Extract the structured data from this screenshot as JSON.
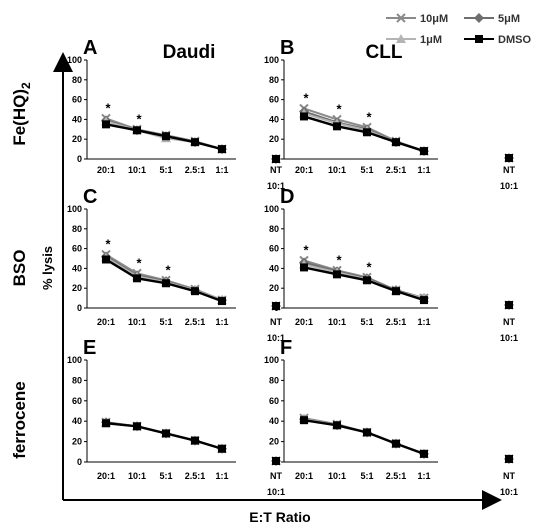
{
  "figure": {
    "y_axis_label": "% lysis",
    "x_axis_label": "E:T Ratio",
    "column_titles": [
      "Daudi",
      "CLL"
    ],
    "row_labels": [
      "Fe(HQ)",
      "BSO",
      "ferrocene"
    ],
    "row_label_subscript": "2",
    "nt_label": [
      "NT",
      "10:1"
    ],
    "significance_marker": "*"
  },
  "legend": [
    {
      "name": "10μM",
      "color": "#8a8a8a",
      "marker": "x"
    },
    {
      "name": "5μM",
      "color": "#6e6e6e",
      "marker": "diamond"
    },
    {
      "name": "1μM",
      "color": "#b4b4b4",
      "marker": "triangle"
    },
    {
      "name": "DMSO",
      "color": "#000000",
      "marker": "square"
    }
  ],
  "chart_data": [
    {
      "type": "line",
      "panel": "A",
      "categories": [
        "20:1",
        "10:1",
        "5:1",
        "2.5:1",
        "1:1"
      ],
      "nt_category": "NT 10:1",
      "ylim": [
        0,
        100
      ],
      "yticks": [
        0,
        20,
        40,
        60,
        80,
        100
      ],
      "series": [
        {
          "name": "10μM",
          "values": [
            41,
            30,
            24,
            18,
            10
          ],
          "nt": 0
        },
        {
          "name": "5μM",
          "values": [
            39,
            29,
            23,
            17,
            10
          ],
          "nt": 0
        },
        {
          "name": "1μM",
          "values": [
            38,
            29,
            21,
            17,
            10
          ],
          "nt": 0
        },
        {
          "name": "DMSO",
          "values": [
            35,
            29,
            23,
            17,
            10
          ],
          "nt": 0
        }
      ],
      "significant": [
        "20:1",
        "10:1"
      ]
    },
    {
      "type": "line",
      "panel": "B",
      "categories": [
        "20:1",
        "10:1",
        "5:1",
        "2.5:1",
        "1:1"
      ],
      "nt_category": "NT 10:1",
      "ylim": [
        0,
        100
      ],
      "yticks": [
        0,
        20,
        40,
        60,
        80,
        100
      ],
      "series": [
        {
          "name": "10μM",
          "values": [
            51,
            40,
            32,
            18,
            8
          ],
          "nt": 1
        },
        {
          "name": "5μM",
          "values": [
            48,
            37,
            30,
            17,
            8
          ],
          "nt": 1
        },
        {
          "name": "1μM",
          "values": [
            46,
            36,
            29,
            17,
            8
          ],
          "nt": 1
        },
        {
          "name": "DMSO",
          "values": [
            43,
            33,
            27,
            17,
            8
          ],
          "nt": 1
        }
      ],
      "significant": [
        "20:1",
        "10:1",
        "5:1"
      ]
    },
    {
      "type": "line",
      "panel": "C",
      "categories": [
        "20:1",
        "10:1",
        "5:1",
        "2.5:1",
        "1:1"
      ],
      "nt_category": "NT 10:1",
      "ylim": [
        0,
        100
      ],
      "yticks": [
        0,
        20,
        40,
        60,
        80,
        100
      ],
      "series": [
        {
          "name": "10μM",
          "values": [
            54,
            35,
            28,
            19,
            8
          ],
          "nt": 2
        },
        {
          "name": "5μM",
          "values": [
            52,
            33,
            27,
            18,
            8
          ],
          "nt": 2
        },
        {
          "name": "1μM",
          "values": [
            51,
            32,
            26,
            18,
            8
          ],
          "nt": 2
        },
        {
          "name": "DMSO",
          "values": [
            49,
            30,
            25,
            17,
            7
          ],
          "nt": 2
        }
      ],
      "significant": [
        "20:1",
        "10:1",
        "5:1"
      ]
    },
    {
      "type": "line",
      "panel": "D",
      "categories": [
        "20:1",
        "10:1",
        "5:1",
        "2.5:1",
        "1:1"
      ],
      "nt_category": "NT 10:1",
      "ylim": [
        0,
        100
      ],
      "yticks": [
        0,
        20,
        40,
        60,
        80,
        100
      ],
      "series": [
        {
          "name": "10μM",
          "values": [
            48,
            38,
            31,
            18,
            10
          ],
          "nt": 3
        },
        {
          "name": "5μM",
          "values": [
            46,
            37,
            30,
            18,
            10
          ],
          "nt": 3
        },
        {
          "name": "1μM",
          "values": [
            44,
            36,
            29,
            17,
            10
          ],
          "nt": 3
        },
        {
          "name": "DMSO",
          "values": [
            41,
            34,
            28,
            17,
            8
          ],
          "nt": 3
        }
      ],
      "significant": [
        "20:1",
        "10:1",
        "5:1"
      ]
    },
    {
      "type": "line",
      "panel": "E",
      "categories": [
        "20:1",
        "10:1",
        "5:1",
        "2.5:1",
        "1:1"
      ],
      "nt_category": "NT 10:1",
      "ylim": [
        0,
        100
      ],
      "yticks": [
        0,
        20,
        40,
        60,
        80,
        100
      ],
      "series": [
        {
          "name": "10μM",
          "values": [
            39,
            35,
            28,
            21,
            13
          ],
          "nt": 1
        },
        {
          "name": "5μM",
          "values": [
            39,
            35,
            28,
            21,
            13
          ],
          "nt": 1
        },
        {
          "name": "1μM",
          "values": [
            38,
            35,
            28,
            21,
            13
          ],
          "nt": 1
        },
        {
          "name": "DMSO",
          "values": [
            38,
            35,
            28,
            21,
            13
          ],
          "nt": 1
        }
      ],
      "significant": []
    },
    {
      "type": "line",
      "panel": "F",
      "categories": [
        "20:1",
        "10:1",
        "5:1",
        "2.5:1",
        "1:1"
      ],
      "nt_category": "NT 10:1",
      "ylim": [
        0,
        100
      ],
      "yticks": [
        0,
        20,
        40,
        60,
        80,
        100
      ],
      "series": [
        {
          "name": "10μM",
          "values": [
            43,
            37,
            29,
            18,
            8
          ],
          "nt": 3
        },
        {
          "name": "5μM",
          "values": [
            42,
            36,
            29,
            18,
            8
          ],
          "nt": 3
        },
        {
          "name": "1μM",
          "values": [
            42,
            36,
            29,
            18,
            8
          ],
          "nt": 3
        },
        {
          "name": "DMSO",
          "values": [
            41,
            36,
            29,
            18,
            8
          ],
          "nt": 3
        }
      ],
      "significant": []
    }
  ]
}
